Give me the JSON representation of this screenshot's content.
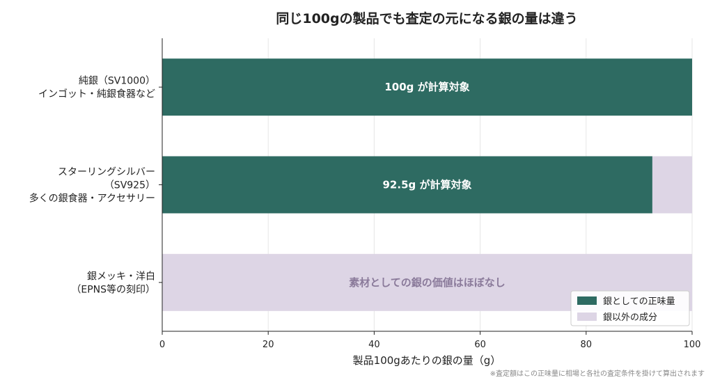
{
  "chart_data": {
    "type": "bar",
    "orientation": "horizontal",
    "stacked": true,
    "title": "同じ100gの製品でも査定の元になる銀の量は違う",
    "xlabel": "製品100gあたりの銀の量（g）",
    "ylabel": "",
    "xlim": [
      0,
      100
    ],
    "xticks": [
      0,
      20,
      40,
      60,
      80,
      100
    ],
    "grid": "x",
    "categories": [
      [
        "純銀（SV1000）",
        "インゴット・純銀食器など"
      ],
      [
        "スターリングシルバー",
        "（SV925）",
        "多くの銀食器・アクセサリー"
      ],
      [
        "銀メッキ・洋白",
        "（EPNS等の刻印）"
      ]
    ],
    "series": [
      {
        "name": "銀としての正味量",
        "color": "#2e6b62",
        "values": [
          100,
          92.5,
          0
        ]
      },
      {
        "name": "銀以外の成分",
        "color": "#ddd5e5",
        "values": [
          0,
          7.5,
          100
        ]
      }
    ],
    "bar_labels": [
      {
        "text": "100g が計算対象",
        "color": "#ffffff"
      },
      {
        "text": "92.5g が計算対象",
        "color": "#ffffff"
      },
      {
        "text": "素材としての銀の価値はほぼなし",
        "color": "#8a7a9a"
      }
    ],
    "legend_position": "lower-right",
    "note": "※査定額はこの正味量に相場と各社の査定条件を掛けて算出されます"
  }
}
